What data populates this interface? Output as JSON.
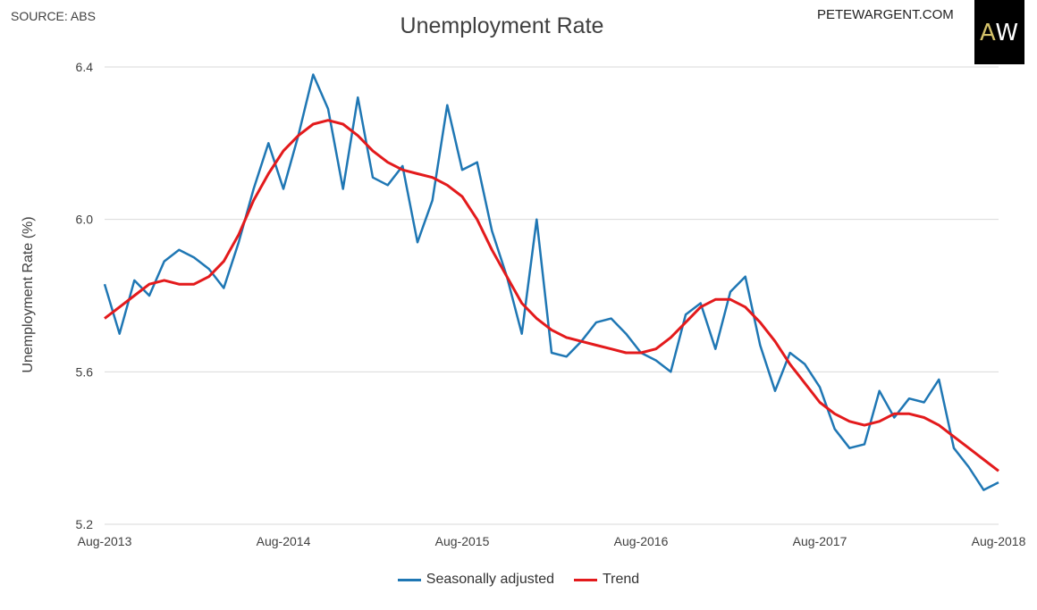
{
  "header": {
    "source": "SOURCE: ABS",
    "site": "PETEWARGENT.COM",
    "logo_a": "A",
    "logo_w": "W"
  },
  "chart_data": {
    "type": "line",
    "title": "Unemployment Rate",
    "ylabel": "Unemployment Rate (%)",
    "xlabel": "",
    "ylim": [
      5.2,
      6.4
    ],
    "yticks": [
      5.2,
      5.6,
      6.0,
      6.4
    ],
    "ytick_labels": [
      "5.2",
      "5.6",
      "6.0",
      "6.4"
    ],
    "xtick_labels": [
      "Aug-2013",
      "Aug-2014",
      "Aug-2015",
      "Aug-2016",
      "Aug-2017",
      "Aug-2018"
    ],
    "xtick_index": [
      0,
      12,
      24,
      36,
      48,
      60
    ],
    "grid": "horizontal",
    "legend_position": "bottom",
    "series": [
      {
        "name": "Seasonally adjusted",
        "color": "#1f77b4",
        "values": [
          5.83,
          5.7,
          5.84,
          5.8,
          5.89,
          5.92,
          5.9,
          5.87,
          5.82,
          5.94,
          6.08,
          6.2,
          6.08,
          6.22,
          6.38,
          6.29,
          6.08,
          6.32,
          6.11,
          6.09,
          6.14,
          5.94,
          6.05,
          6.3,
          6.13,
          6.15,
          5.97,
          5.85,
          5.7,
          6.0,
          5.65,
          5.64,
          5.68,
          5.73,
          5.74,
          5.7,
          5.65,
          5.63,
          5.6,
          5.75,
          5.78,
          5.66,
          5.81,
          5.85,
          5.67,
          5.55,
          5.65,
          5.62,
          5.56,
          5.45,
          5.4,
          5.41,
          5.55,
          5.48,
          5.53,
          5.52,
          5.58,
          5.4,
          5.35,
          5.29,
          5.31
        ]
      },
      {
        "name": "Trend",
        "color": "#e31a1c",
        "values": [
          5.74,
          5.77,
          5.8,
          5.83,
          5.84,
          5.83,
          5.83,
          5.85,
          5.89,
          5.96,
          6.05,
          6.12,
          6.18,
          6.22,
          6.25,
          6.26,
          6.25,
          6.22,
          6.18,
          6.15,
          6.13,
          6.12,
          6.11,
          6.09,
          6.06,
          6.0,
          5.92,
          5.85,
          5.78,
          5.74,
          5.71,
          5.69,
          5.68,
          5.67,
          5.66,
          5.65,
          5.65,
          5.66,
          5.69,
          5.73,
          5.77,
          5.79,
          5.79,
          5.77,
          5.73,
          5.68,
          5.62,
          5.57,
          5.52,
          5.49,
          5.47,
          5.46,
          5.47,
          5.49,
          5.49,
          5.48,
          5.46,
          5.43,
          5.4,
          5.37,
          5.34
        ]
      }
    ]
  }
}
